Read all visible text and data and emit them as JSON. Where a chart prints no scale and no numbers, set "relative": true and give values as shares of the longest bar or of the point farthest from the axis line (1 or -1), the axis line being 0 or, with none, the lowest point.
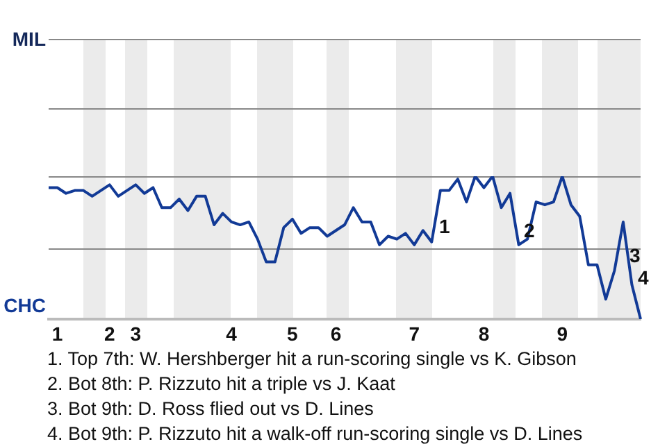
{
  "chart_data": {
    "type": "line",
    "relative": true,
    "categories": [
      null,
      "1",
      null,
      null,
      null,
      null,
      null,
      "2",
      null,
      null,
      "3",
      null,
      null,
      null,
      null,
      null,
      null,
      null,
      null,
      null,
      null,
      "4",
      null,
      null,
      null,
      null,
      null,
      null,
      "5",
      null,
      null,
      null,
      null,
      "6",
      null,
      null,
      null,
      null,
      null,
      null,
      null,
      null,
      "7",
      null,
      null,
      null,
      null,
      null,
      null,
      null,
      "8",
      null,
      null,
      null,
      null,
      null,
      null,
      null,
      null,
      "9",
      null,
      null,
      null,
      null,
      null,
      null,
      null,
      null,
      null
    ],
    "series": [
      {
        "color": "#123a96",
        "values": [
          0.92,
          0.92,
          0.88,
          0.9,
          0.9,
          0.86,
          0.9,
          0.94,
          0.86,
          0.9,
          0.94,
          0.88,
          0.92,
          0.78,
          0.78,
          0.84,
          0.76,
          0.86,
          0.86,
          0.66,
          0.74,
          0.68,
          0.66,
          0.68,
          0.56,
          0.4,
          0.4,
          0.64,
          0.7,
          0.6,
          0.64,
          0.64,
          0.58,
          0.62,
          0.66,
          0.78,
          0.68,
          0.68,
          0.52,
          0.58,
          0.56,
          0.6,
          0.52,
          0.62,
          0.54,
          0.9,
          0.9,
          0.98,
          0.82,
          1,
          0.92,
          1,
          0.78,
          0.88,
          0.52,
          0.56,
          0.82,
          0.8,
          0.82,
          1,
          0.8,
          0.72,
          0.38,
          0.38,
          0.14,
          0.34,
          0.68,
          0.24,
          0
        ]
      }
    ],
    "marker": "none",
    "ref_lines": [
      {
        "axis": "y",
        "value": 0.5,
        "color": "#888888"
      },
      {
        "axis": "y",
        "value": 1,
        "color": "#888888"
      }
    ],
    "annotations": [
      "MIL",
      "CHC",
      "1",
      "2",
      "3",
      "4",
      "1. Top 7th: W. Hershberger hit a run-scoring single vs K. Gibson",
      "2. Bot 8th: P. Rizzuto hit a triple vs J. Kaat",
      "3. Bot 9th: D. Ross flied out vs D. Lines",
      "4. Bot 9th: P. Rizzuto hit a walk-off run-scoring single vs D. Lines"
    ]
  }
}
